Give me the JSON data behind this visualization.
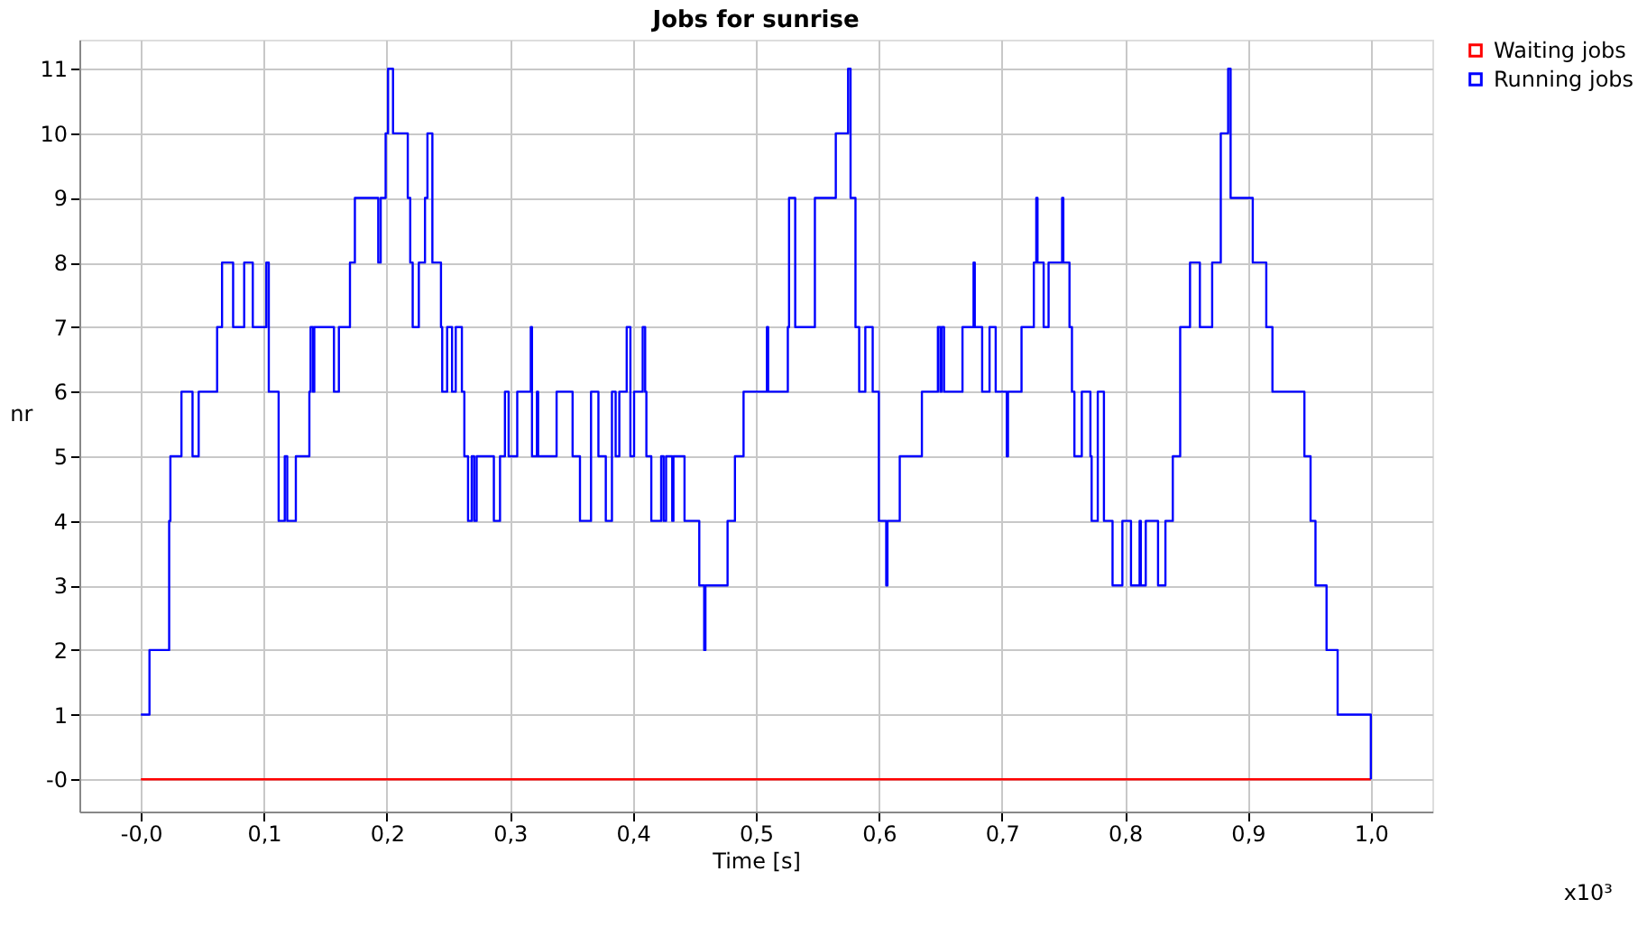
{
  "chart_data": {
    "type": "step",
    "title": "Jobs for sunrise",
    "xlabel": "Time [s]",
    "ylabel": "nr",
    "xlim": [
      -0.05,
      1.05
    ],
    "ylim": [
      -0.5,
      11.45
    ],
    "xticks": [
      {
        "value": 0,
        "label": "-0,0"
      },
      {
        "value": 0.1,
        "label": "0,1"
      },
      {
        "value": 0.2,
        "label": "0,2"
      },
      {
        "value": 0.3,
        "label": "0,3"
      },
      {
        "value": 0.4,
        "label": "0,4"
      },
      {
        "value": 0.5,
        "label": "0,5"
      },
      {
        "value": 0.6,
        "label": "0,6"
      },
      {
        "value": 0.7,
        "label": "0,7"
      },
      {
        "value": 0.8,
        "label": "0,8"
      },
      {
        "value": 0.9,
        "label": "0,9"
      },
      {
        "value": 1.0,
        "label": "1,0"
      }
    ],
    "yticks": [
      {
        "value": 0,
        "label": "-0"
      },
      1,
      2,
      3,
      4,
      5,
      6,
      7,
      8,
      9,
      10,
      11
    ],
    "grid": true,
    "legend": "top right",
    "marker": "none",
    "line_style": "solid",
    "annotations": [
      "x10³"
    ],
    "series": [
      {
        "name": "Waiting jobs",
        "color": "#ff0000",
        "x": [
          0,
          1.0
        ],
        "values": [
          0,
          0
        ]
      },
      {
        "name": "Running jobs",
        "color": "#0000ff",
        "x": [
          0,
          0.007,
          0.023,
          0.024,
          0.033,
          0.042,
          0.047,
          0.062,
          0.066,
          0.075,
          0.084,
          0.091,
          0.102,
          0.104,
          0.112,
          0.117,
          0.119,
          0.126,
          0.137,
          0.138,
          0.14,
          0.141,
          0.157,
          0.161,
          0.17,
          0.174,
          0.193,
          0.195,
          0.199,
          0.201,
          0.205,
          0.217,
          0.219,
          0.221,
          0.226,
          0.231,
          0.233,
          0.237,
          0.244,
          0.245,
          0.249,
          0.253,
          0.256,
          0.261,
          0.263,
          0.266,
          0.269,
          0.271,
          0.273,
          0.287,
          0.292,
          0.296,
          0.299,
          0.306,
          0.317,
          0.318,
          0.322,
          0.323,
          0.338,
          0.351,
          0.357,
          0.366,
          0.372,
          0.378,
          0.383,
          0.386,
          0.389,
          0.395,
          0.398,
          0.401,
          0.408,
          0.41,
          0.411,
          0.415,
          0.423,
          0.425,
          0.427,
          0.432,
          0.433,
          0.442,
          0.454,
          0.458,
          0.459,
          0.477,
          0.483,
          0.49,
          0.509,
          0.51,
          0.526,
          0.527,
          0.532,
          0.548,
          0.565,
          0.575,
          0.577,
          0.581,
          0.584,
          0.589,
          0.595,
          0.6,
          0.606,
          0.607,
          0.617,
          0.635,
          0.648,
          0.65,
          0.651,
          0.653,
          0.668,
          0.677,
          0.678,
          0.684,
          0.69,
          0.695,
          0.704,
          0.705,
          0.716,
          0.726,
          0.728,
          0.729,
          0.734,
          0.738,
          0.749,
          0.75,
          0.755,
          0.757,
          0.759,
          0.765,
          0.772,
          0.773,
          0.778,
          0.783,
          0.79,
          0.798,
          0.805,
          0.812,
          0.813,
          0.817,
          0.827,
          0.833,
          0.839,
          0.845,
          0.853,
          0.861,
          0.871,
          0.878,
          0.884,
          0.886,
          0.904,
          0.915,
          0.92,
          0.946,
          0.951,
          0.955,
          0.964,
          0.973,
          1.0
        ],
        "values": [
          1,
          2,
          4,
          5,
          6,
          5,
          6,
          7,
          8,
          7,
          8,
          7,
          8,
          6,
          4,
          5,
          4,
          5,
          6,
          7,
          6,
          7,
          6,
          7,
          8,
          9,
          8,
          9,
          10,
          11,
          10,
          9,
          8,
          7,
          8,
          9,
          10,
          8,
          7,
          6,
          7,
          6,
          7,
          6,
          5,
          4,
          5,
          4,
          5,
          4,
          5,
          6,
          5,
          6,
          7,
          5,
          6,
          5,
          6,
          5,
          4,
          6,
          5,
          4,
          6,
          5,
          6,
          7,
          5,
          6,
          7,
          6,
          5,
          4,
          5,
          4,
          5,
          4,
          5,
          4,
          3,
          2,
          3,
          4,
          5,
          6,
          7,
          6,
          7,
          9,
          7,
          9,
          10,
          11,
          9,
          7,
          6,
          7,
          6,
          4,
          3,
          4,
          5,
          6,
          7,
          6,
          7,
          6,
          7,
          8,
          7,
          6,
          7,
          6,
          5,
          6,
          7,
          8,
          9,
          8,
          7,
          8,
          9,
          8,
          7,
          6,
          5,
          6,
          5,
          4,
          6,
          4,
          3,
          4,
          3,
          4,
          3,
          4,
          3,
          4,
          5,
          7,
          8,
          7,
          8,
          10,
          11,
          9,
          8,
          7,
          6,
          5,
          4,
          3,
          2,
          1,
          0
        ]
      }
    ]
  }
}
